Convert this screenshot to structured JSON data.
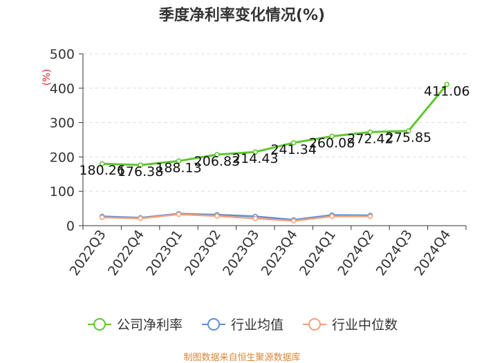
{
  "chart_data": {
    "type": "line",
    "title": "季度净利率变化情况(%)",
    "ylabel": "(%)",
    "ylim": [
      0,
      500
    ],
    "yticks": [
      0,
      100,
      200,
      300,
      400,
      500
    ],
    "grid": true,
    "legend_position": "bottom",
    "categories": [
      "2022Q3",
      "2022Q4",
      "2023Q1",
      "2023Q2",
      "2023Q3",
      "2023Q4",
      "2024Q1",
      "2024Q2",
      "2024Q3",
      "2024Q4"
    ],
    "series": [
      {
        "name": "公司净利率",
        "color": "#5cc72a",
        "values": [
          180.26,
          176.38,
          188.13,
          206.83,
          214.43,
          241.34,
          260.08,
          272.42,
          275.85,
          411.06
        ],
        "labels": [
          "180.26",
          "176.38",
          "188.13",
          "206.83",
          "214.43",
          "241.34",
          "260.08",
          "272.42",
          "275.85",
          "411.06"
        ]
      },
      {
        "name": "行业均值",
        "color": "#5b8fd6",
        "values": [
          27,
          23,
          35,
          32,
          27,
          17,
          31,
          30,
          null,
          null
        ]
      },
      {
        "name": "行业中位数",
        "color": "#f4a078",
        "values": [
          24,
          21,
          33,
          28,
          21,
          14,
          27,
          27,
          null,
          null
        ]
      }
    ],
    "source": "制图数据来自恒生聚源数据库"
  }
}
